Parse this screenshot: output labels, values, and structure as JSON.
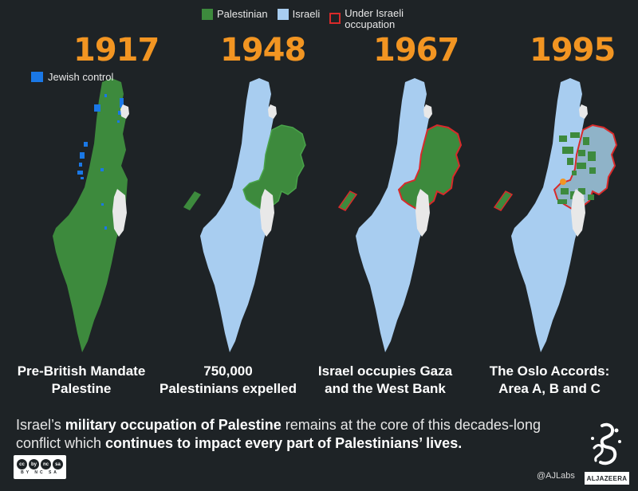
{
  "legend": {
    "palestinian": "Palestinian",
    "israeli": "Israeli",
    "occupation_line1": "Under Israeli",
    "occupation_line2": "occupation"
  },
  "colors": {
    "palestinian": "#3d8a3d",
    "israeli": "#a8cdf0",
    "occupation_border": "#d92a2a",
    "jewish_control": "#1a78e6",
    "year": "#f29522",
    "background": "#1e2326"
  },
  "jewish_control_label": "Jewish control",
  "panels": [
    {
      "year": "1917",
      "caption_line1": "Pre-British Mandate",
      "caption_line2": "Palestine"
    },
    {
      "year": "1948",
      "caption_line1": "750,000",
      "caption_line2": "Palestinians expelled"
    },
    {
      "year": "1967",
      "caption_line1": "Israel occupies Gaza",
      "caption_line2": "and the West Bank"
    },
    {
      "year": "1995",
      "caption_line1": "The Oslo Accords:",
      "caption_line2": "Area A, B and C"
    }
  ],
  "summary": {
    "part1": "Israel’s ",
    "bold1": "military occupation of Palestine",
    "part2": " remains at the core of this decades-long conflict which ",
    "bold2": "continues to impact every part of Palestinians’ lives."
  },
  "footer": {
    "license_icons": [
      "cc",
      "by",
      "nc",
      "sa"
    ],
    "license_text": "BY NC SA",
    "handle": "@AJLabs",
    "logo_text": "ALJAZEERA"
  }
}
